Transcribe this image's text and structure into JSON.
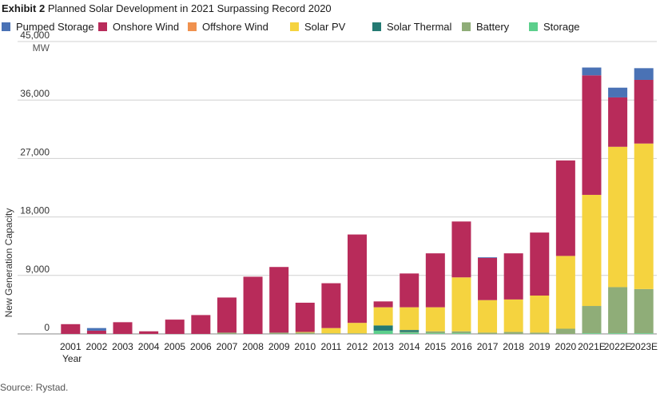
{
  "header": {
    "exhibit": "Exhibit 2",
    "title": "Planned Solar Development in 2021 Surpassing Record 2020"
  },
  "source": "Source: Rystad.",
  "chart_data": {
    "type": "bar",
    "stacked": true,
    "ylabel": "New Generation Capacity",
    "yunit": "MW",
    "xlabel": "Year",
    "ylim": [
      0,
      45000
    ],
    "yticks": [
      "0",
      "9,000",
      "18,000",
      "27,000",
      "36,000",
      "45,000"
    ],
    "ytick_values": [
      0,
      9000,
      18000,
      27000,
      36000,
      45000
    ],
    "grid": true,
    "legend_position": "top",
    "categories": [
      "2001",
      "2002",
      "2003",
      "2004",
      "2005",
      "2006",
      "2007",
      "2008",
      "2009",
      "2010",
      "2011",
      "2012",
      "2013",
      "2014",
      "2015",
      "2016",
      "2017",
      "2018",
      "2019",
      "2020",
      "2021E",
      "2022E",
      "2023E"
    ],
    "series": [
      {
        "name": "Storage",
        "color": "#5ccf8c",
        "values": [
          0,
          0,
          0,
          0,
          0,
          0,
          0,
          0,
          0,
          0,
          0,
          0,
          500,
          200,
          100,
          100,
          0,
          0,
          0,
          0,
          100,
          100,
          100
        ]
      },
      {
        "name": "Battery",
        "color": "#8fad78",
        "values": [
          0,
          0,
          0,
          0,
          0,
          0,
          200,
          0,
          200,
          200,
          100,
          100,
          0,
          100,
          300,
          300,
          200,
          300,
          200,
          800,
          4200,
          7100,
          6800
        ]
      },
      {
        "name": "Solar Thermal",
        "color": "#247a73",
        "values": [
          0,
          0,
          0,
          0,
          0,
          0,
          0,
          0,
          0,
          0,
          0,
          0,
          800,
          300,
          0,
          0,
          0,
          0,
          0,
          0,
          0,
          0,
          0
        ]
      },
      {
        "name": "Solar PV",
        "color": "#f5d33f",
        "values": [
          0,
          0,
          0,
          0,
          0,
          0,
          0,
          0,
          0,
          100,
          800,
          1600,
          2800,
          3500,
          3700,
          8300,
          5000,
          5000,
          5700,
          11200,
          17100,
          21600,
          22400
        ]
      },
      {
        "name": "Offshore Wind",
        "color": "#f0914e",
        "values": [
          0,
          0,
          0,
          0,
          0,
          0,
          0,
          0,
          0,
          0,
          0,
          0,
          0,
          0,
          0,
          0,
          0,
          0,
          0,
          0,
          0,
          0,
          0
        ]
      },
      {
        "name": "Onshore Wind",
        "color": "#b82b5a",
        "values": [
          1500,
          500,
          1800,
          400,
          2200,
          2900,
          5400,
          8800,
          10100,
          4500,
          6900,
          13600,
          900,
          5200,
          8300,
          8600,
          6500,
          7100,
          9700,
          14700,
          18400,
          7600,
          9800
        ]
      },
      {
        "name": "Pumped Storage",
        "color": "#4a72b5",
        "values": [
          0,
          400,
          0,
          0,
          0,
          0,
          0,
          0,
          0,
          0,
          0,
          0,
          0,
          0,
          0,
          0,
          100,
          0,
          0,
          0,
          1200,
          1500,
          1800
        ]
      }
    ],
    "legend_order": [
      "Pumped Storage",
      "Onshore Wind",
      "Offshore Wind",
      "Solar PV",
      "Solar Thermal",
      "Battery",
      "Storage"
    ]
  }
}
